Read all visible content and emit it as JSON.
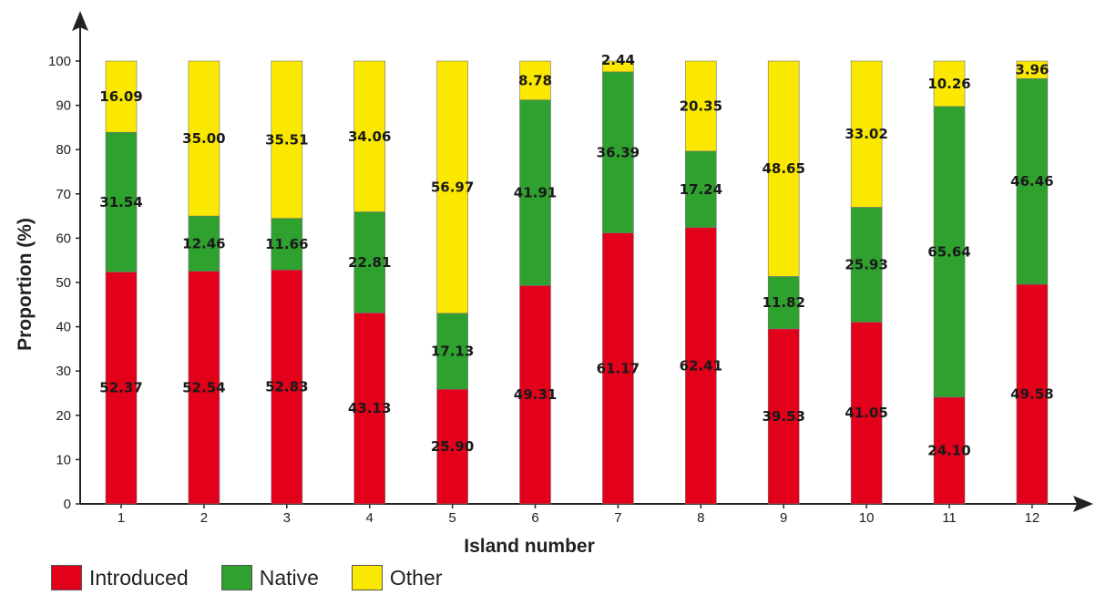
{
  "chart_data": {
    "type": "bar",
    "stacked": true,
    "xlabel": "Island number",
    "ylabel": "Proportion (%)",
    "ylim": [
      0,
      100
    ],
    "yticks": [
      0,
      10,
      20,
      30,
      40,
      50,
      60,
      70,
      80,
      90,
      100
    ],
    "categories": [
      "1",
      "2",
      "3",
      "4",
      "5",
      "6",
      "7",
      "8",
      "9",
      "10",
      "11",
      "12"
    ],
    "series": [
      {
        "name": "Introduced",
        "color": "#e2001a",
        "values": [
          52.37,
          52.54,
          52.83,
          43.13,
          25.9,
          49.31,
          61.17,
          62.41,
          39.53,
          41.05,
          24.1,
          49.58
        ],
        "labels": [
          "52.37",
          "52.54",
          "52.83",
          "43.13",
          "25.90",
          "49.31",
          "61.17",
          "62.41",
          "39.53",
          "41.05",
          "24.10",
          "49.58"
        ]
      },
      {
        "name": "Native",
        "color": "#2ea12f",
        "values": [
          31.54,
          12.46,
          11.66,
          22.81,
          17.13,
          41.91,
          36.39,
          17.24,
          11.82,
          25.93,
          65.64,
          46.46
        ],
        "labels": [
          "31.54",
          "12.46",
          "11.66",
          "22.81",
          "17.13",
          "41.91",
          "36.39",
          "17.24",
          "11.82",
          "25.93",
          "65.64",
          "46.46"
        ]
      },
      {
        "name": "Other",
        "color": "#fbe800",
        "values": [
          16.09,
          35.0,
          35.51,
          34.06,
          56.97,
          8.78,
          2.44,
          20.35,
          48.65,
          33.02,
          10.26,
          3.96
        ],
        "labels": [
          "16.09",
          "35.00",
          "35.51",
          "34.06",
          "56.97",
          "8.78",
          "2.44",
          "20.35",
          "48.65",
          "33.02",
          "10.26",
          "3.96"
        ]
      }
    ],
    "legend_position": "bottom-left",
    "grid": false
  }
}
